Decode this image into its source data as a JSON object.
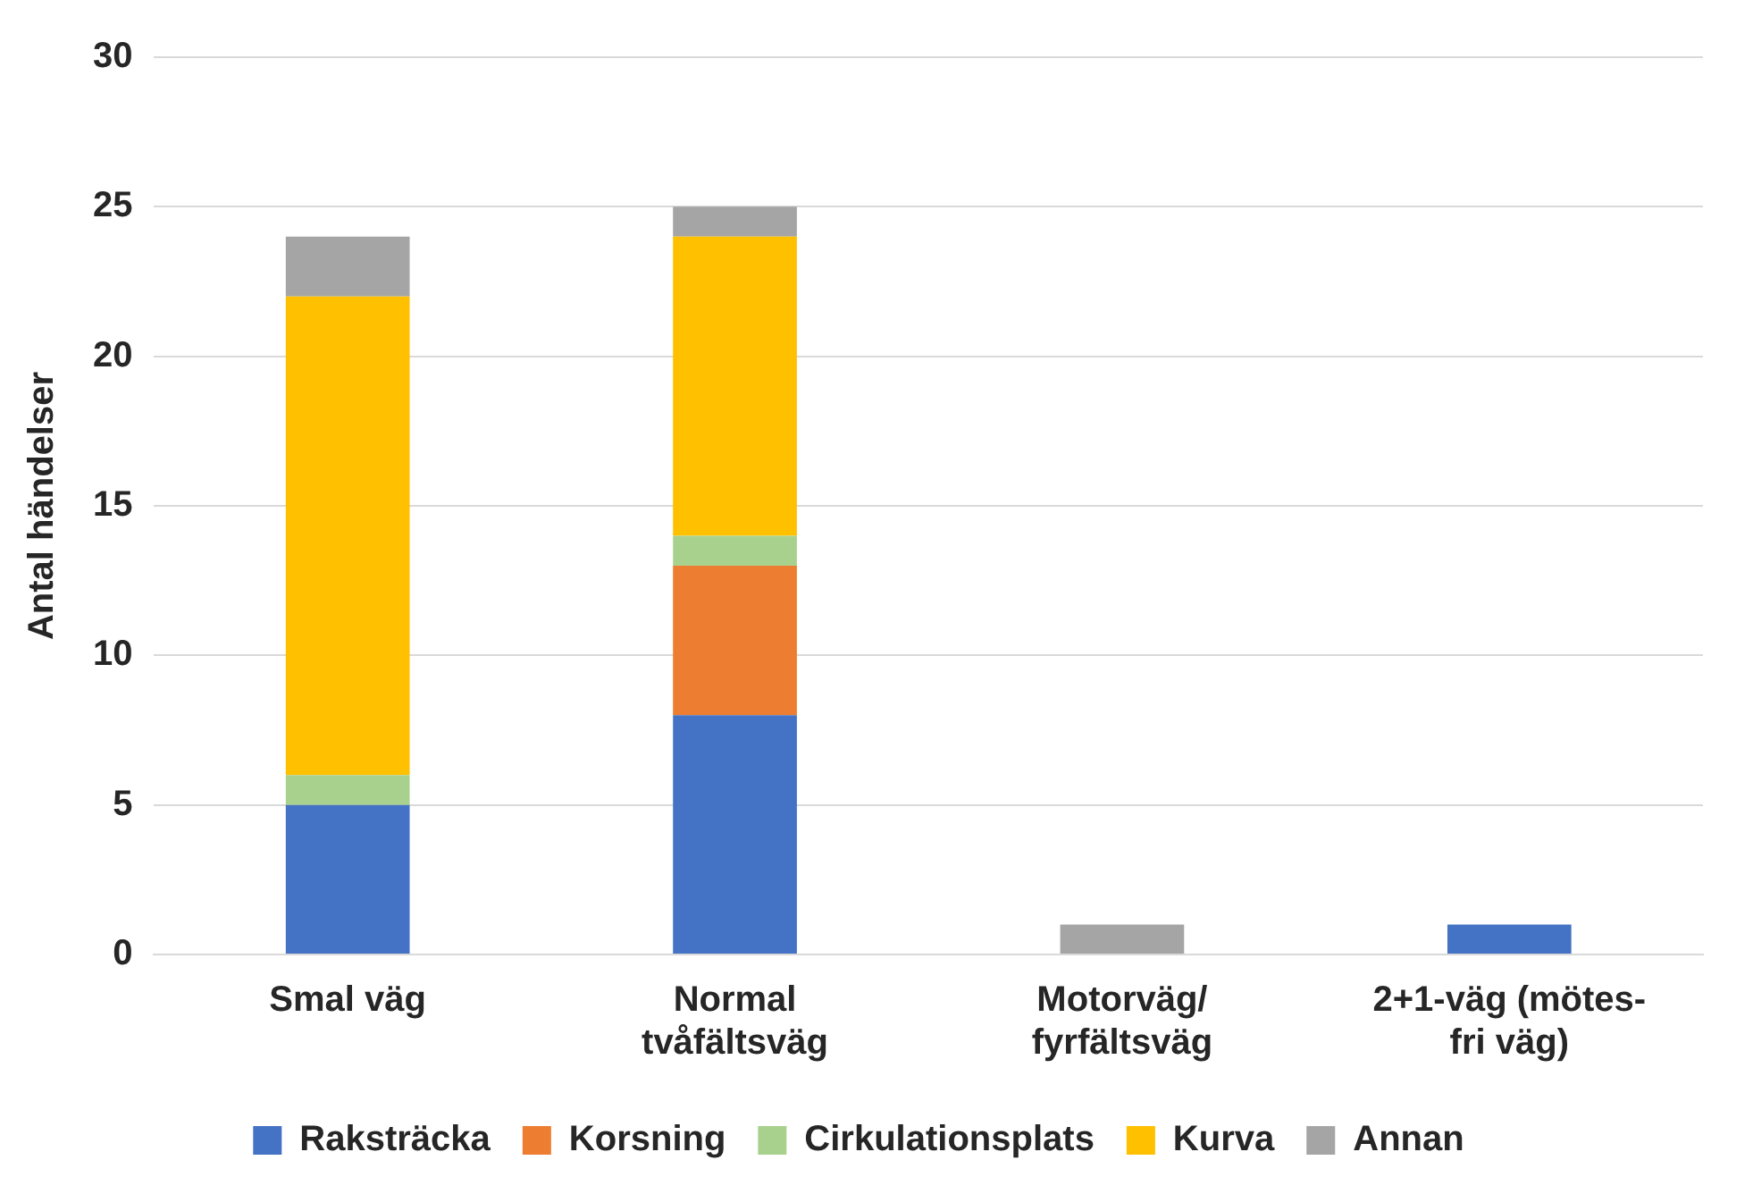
{
  "chart_data": {
    "type": "bar",
    "ylabel": "Antal händelser",
    "stacked": true,
    "categories": [
      "Smal väg",
      "Normal\ntvåfältsväg",
      "Motorväg/\nfyrfältsväg",
      "2+1-väg (mötes-\nfri väg)"
    ],
    "series": [
      {
        "name": "Raksträcka",
        "color": "#4472c4",
        "values": [
          5,
          8,
          0,
          1
        ]
      },
      {
        "name": "Korsning",
        "color": "#ed7d31",
        "values": [
          0,
          5,
          0,
          0
        ]
      },
      {
        "name": "Cirkulationsplats",
        "color": "#a9d18e",
        "values": [
          1,
          1,
          0,
          0
        ]
      },
      {
        "name": "Kurva",
        "color": "#ffc000",
        "values": [
          16,
          10,
          0,
          0
        ]
      },
      {
        "name": "Annan",
        "color": "#a5a5a5",
        "values": [
          2,
          1,
          1,
          0
        ]
      }
    ],
    "ylim": [
      0,
      30
    ],
    "yticks": [
      0,
      5,
      10,
      15,
      20,
      25,
      30
    ],
    "grid": "y",
    "legend": "bottom"
  }
}
